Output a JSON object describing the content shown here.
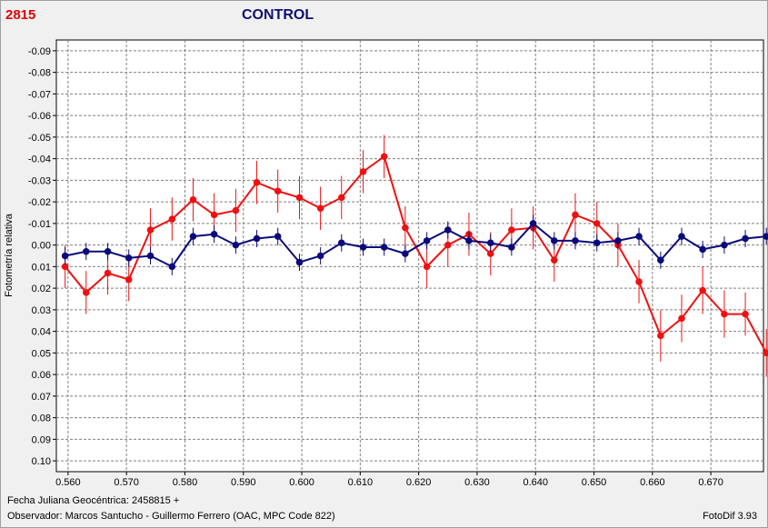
{
  "header": {
    "object_id": "2815",
    "title": "CONTROL"
  },
  "footer": {
    "date_label": "Fecha Juliana Geocéntrica: 2458815 +",
    "observer_label": "Observador: Marcos Santucho - Guillermo Ferrero (OAC, MPC Code 822)",
    "software": "FotoDif 3.93"
  },
  "colors": {
    "object": "#ee1111",
    "control": "#0a0a7a",
    "grid": "#808080",
    "errorbar_object": "#ee1111",
    "errorbar_control": "#0a0a7a"
  },
  "chart_data": {
    "type": "line",
    "xlabel": "",
    "ylabel": "Fotometría relativa",
    "xlim": [
      0.558,
      0.679
    ],
    "ylim": [
      -0.095,
      0.105
    ],
    "y_inverted": true,
    "grid": true,
    "x_ticks": [
      "0.560",
      "0.570",
      "0.580",
      "0.590",
      "0.600",
      "0.610",
      "0.620",
      "0.630",
      "0.640",
      "0.650",
      "0.660",
      "0.670"
    ],
    "y_ticks": [
      "-0.09",
      "-0.08",
      "-0.07",
      "-0.06",
      "-0.05",
      "-0.04",
      "-0.03",
      "-0.02",
      "-0.01",
      "0.00",
      "0.01",
      "0.02",
      "0.03",
      "0.04",
      "0.05",
      "0.06",
      "0.07",
      "0.08",
      "0.09",
      "0.10"
    ],
    "series": [
      {
        "color": "#ee1111",
        "x": [
          0.5595,
          0.5631,
          0.5668,
          0.5704,
          0.5741,
          0.5778,
          0.5814,
          0.585,
          0.5887,
          0.5923,
          0.5959,
          0.5996,
          0.6032,
          0.6068,
          0.6105,
          0.6141,
          0.6177,
          0.6214,
          0.625,
          0.6286,
          0.6323,
          0.6359,
          0.6396,
          0.6432,
          0.6468,
          0.6505,
          0.6541,
          0.6577,
          0.6614,
          0.665,
          0.6686,
          0.6723,
          0.6759,
          0.6795
        ],
        "y": [
          0.01,
          0.022,
          0.013,
          0.016,
          -0.007,
          -0.012,
          -0.021,
          -0.014,
          -0.016,
          -0.029,
          -0.025,
          -0.022,
          -0.017,
          -0.022,
          -0.034,
          -0.041,
          -0.008,
          0.01,
          0.0,
          -0.005,
          0.004,
          -0.007,
          -0.008,
          0.007,
          -0.014,
          -0.01,
          0.0,
          0.017,
          0.042,
          0.034,
          0.021,
          0.032,
          0.032,
          0.05
        ],
        "err": [
          0.01,
          0.01,
          0.01,
          0.01,
          0.01,
          0.01,
          0.01,
          0.01,
          0.01,
          0.01,
          0.01,
          0.01,
          0.01,
          0.01,
          0.01,
          0.01,
          0.01,
          0.01,
          0.01,
          0.01,
          0.01,
          0.01,
          0.01,
          0.01,
          0.01,
          0.01,
          0.01,
          0.01,
          0.012,
          0.011,
          0.011,
          0.011,
          0.01,
          0.011
        ]
      },
      {
        "color": "#0a0a7a",
        "x": [
          0.5595,
          0.5631,
          0.5668,
          0.5704,
          0.5741,
          0.5778,
          0.5814,
          0.585,
          0.5887,
          0.5923,
          0.5959,
          0.5996,
          0.6032,
          0.6068,
          0.6105,
          0.6141,
          0.6177,
          0.6214,
          0.625,
          0.6286,
          0.6323,
          0.6359,
          0.6396,
          0.6432,
          0.6468,
          0.6505,
          0.6541,
          0.6577,
          0.6614,
          0.665,
          0.6686,
          0.6723,
          0.6759,
          0.6795
        ],
        "y": [
          0.005,
          0.003,
          0.003,
          0.006,
          0.005,
          0.01,
          -0.004,
          -0.005,
          0.0,
          -0.003,
          -0.004,
          0.008,
          0.005,
          -0.001,
          0.001,
          0.001,
          0.004,
          -0.002,
          -0.007,
          -0.002,
          -0.001,
          0.001,
          -0.01,
          -0.002,
          -0.002,
          -0.001,
          -0.002,
          -0.004,
          0.007,
          -0.004,
          0.002,
          0.0,
          -0.003,
          -0.004
        ],
        "err": [
          0.004,
          0.004,
          0.004,
          0.004,
          0.004,
          0.004,
          0.004,
          0.004,
          0.004,
          0.004,
          0.004,
          0.004,
          0.004,
          0.004,
          0.004,
          0.004,
          0.004,
          0.004,
          0.004,
          0.004,
          0.004,
          0.004,
          0.004,
          0.004,
          0.004,
          0.004,
          0.004,
          0.004,
          0.004,
          0.004,
          0.004,
          0.004,
          0.004,
          0.004
        ]
      }
    ]
  }
}
